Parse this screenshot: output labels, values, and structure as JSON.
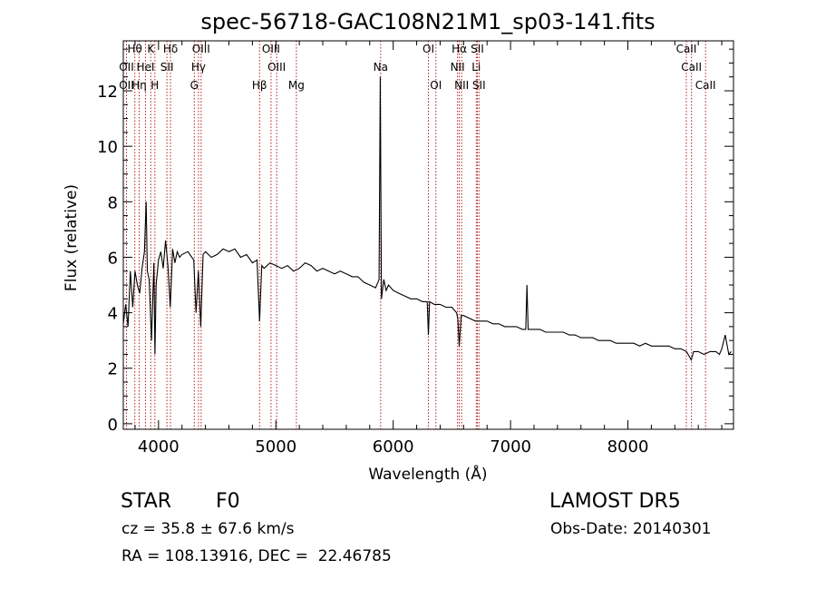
{
  "chart_data": {
    "type": "line",
    "title": "spec-56718-GAC108N21M1_sp03-141.fits",
    "xlabel": "Wavelength (Å)",
    "ylabel": "Flux (relative)",
    "xlim": [
      3700,
      8900
    ],
    "ylim": [
      -0.2,
      13.8
    ],
    "xticks": [
      4000,
      5000,
      6000,
      7000,
      8000
    ],
    "xtick_labels": [
      "4000",
      "5000",
      "6000",
      "7000",
      "8000"
    ],
    "yticks": [
      0,
      2,
      4,
      6,
      8,
      10,
      12
    ],
    "ytick_labels": [
      "0",
      "2",
      "4",
      "6",
      "8",
      "10",
      "12"
    ],
    "grid": false,
    "spectral_lines": [
      {
        "label": "OII",
        "wavelength": 3727,
        "row": 2
      },
      {
        "label": "OII",
        "wavelength": 3727,
        "row": 3
      },
      {
        "label": "Hθ",
        "wavelength": 3798,
        "row": 1
      },
      {
        "label": "Hη",
        "wavelength": 3835,
        "row": 3
      },
      {
        "label": "HeI",
        "wavelength": 3889,
        "row": 2
      },
      {
        "label": "K",
        "wavelength": 3934,
        "row": 1
      },
      {
        "label": "H",
        "wavelength": 3969,
        "row": 3
      },
      {
        "label": "Hδ",
        "wavelength": 4102,
        "row": 1
      },
      {
        "label": "SII",
        "wavelength": 4072,
        "row": 2
      },
      {
        "label": "OIII",
        "wavelength": 4363,
        "row": 1
      },
      {
        "label": "Hγ",
        "wavelength": 4341,
        "row": 2
      },
      {
        "label": "G",
        "wavelength": 4305,
        "row": 3
      },
      {
        "label": "OIII",
        "wavelength": 4959,
        "row": 1
      },
      {
        "label": "OIII",
        "wavelength": 5007,
        "row": 2
      },
      {
        "label": "Hβ",
        "wavelength": 4861,
        "row": 3
      },
      {
        "label": "Mg",
        "wavelength": 5175,
        "row": 3
      },
      {
        "label": "Na",
        "wavelength": 5893,
        "row": 2
      },
      {
        "label": "OI",
        "wavelength": 6300,
        "row": 1
      },
      {
        "label": "OI",
        "wavelength": 6364,
        "row": 3
      },
      {
        "label": "Hα",
        "wavelength": 6563,
        "row": 1
      },
      {
        "label": "NII",
        "wavelength": 6548,
        "row": 2
      },
      {
        "label": "NII",
        "wavelength": 6583,
        "row": 3
      },
      {
        "label": "SII",
        "wavelength": 6717,
        "row": 1
      },
      {
        "label": "Li",
        "wavelength": 6708,
        "row": 2
      },
      {
        "label": "SII",
        "wavelength": 6731,
        "row": 3
      },
      {
        "label": "CaII",
        "wavelength": 8498,
        "row": 1
      },
      {
        "label": "CaII",
        "wavelength": 8542,
        "row": 2
      },
      {
        "label": "CaII",
        "wavelength": 8662,
        "row": 3
      }
    ],
    "series": [
      {
        "x": [
          3700,
          3720,
          3740,
          3760,
          3780,
          3800,
          3820,
          3840,
          3860,
          3880,
          3895,
          3905,
          3920,
          3940,
          3960,
          3970,
          3980,
          4000,
          4020,
          4040,
          4060,
          4080,
          4100,
          4120,
          4140,
          4160,
          4180,
          4200,
          4250,
          4300,
          4320,
          4340,
          4360,
          4380,
          4400,
          4450,
          4500,
          4550,
          4600,
          4650,
          4700,
          4750,
          4800,
          4840,
          4861,
          4880,
          4900,
          4950,
          5000,
          5050,
          5100,
          5150,
          5200,
          5250,
          5300,
          5350,
          5400,
          5450,
          5500,
          5550,
          5600,
          5650,
          5700,
          5750,
          5800,
          5850,
          5880,
          5890,
          5900,
          5920,
          5940,
          5960,
          6000,
          6050,
          6100,
          6150,
          6200,
          6250,
          6290,
          6300,
          6310,
          6350,
          6400,
          6450,
          6500,
          6540,
          6550,
          6563,
          6580,
          6600,
          6650,
          6700,
          6750,
          6800,
          6850,
          6900,
          6950,
          7000,
          7050,
          7100,
          7130,
          7140,
          7150,
          7200,
          7250,
          7300,
          7350,
          7400,
          7450,
          7500,
          7550,
          7600,
          7650,
          7700,
          7750,
          7800,
          7850,
          7900,
          7950,
          8000,
          8050,
          8100,
          8150,
          8200,
          8250,
          8300,
          8350,
          8400,
          8450,
          8500,
          8540,
          8560,
          8600,
          8650,
          8700,
          8750,
          8780,
          8800,
          8830,
          8860,
          8880
        ],
        "y": [
          3.6,
          4.3,
          3.5,
          5.5,
          4.2,
          5.5,
          5.0,
          4.7,
          5.6,
          6.2,
          8.0,
          5.5,
          5.2,
          3.0,
          5.8,
          2.5,
          5.0,
          5.9,
          6.2,
          5.6,
          6.6,
          5.7,
          4.2,
          6.3,
          5.8,
          6.2,
          6.0,
          6.1,
          6.2,
          5.9,
          4.0,
          5.5,
          3.5,
          6.1,
          6.2,
          6.0,
          6.1,
          6.3,
          6.2,
          6.3,
          6.0,
          6.1,
          5.8,
          5.9,
          3.7,
          5.7,
          5.6,
          5.8,
          5.7,
          5.6,
          5.7,
          5.5,
          5.6,
          5.8,
          5.7,
          5.5,
          5.6,
          5.5,
          5.4,
          5.5,
          5.4,
          5.3,
          5.3,
          5.1,
          5.0,
          4.9,
          5.2,
          12.5,
          4.5,
          5.2,
          4.8,
          5.0,
          4.8,
          4.7,
          4.6,
          4.5,
          4.5,
          4.4,
          4.4,
          3.2,
          4.4,
          4.3,
          4.3,
          4.2,
          4.2,
          4.0,
          3.8,
          2.8,
          3.9,
          3.9,
          3.8,
          3.7,
          3.7,
          3.7,
          3.6,
          3.6,
          3.5,
          3.5,
          3.5,
          3.4,
          3.4,
          5.0,
          3.4,
          3.4,
          3.4,
          3.3,
          3.3,
          3.3,
          3.3,
          3.2,
          3.2,
          3.1,
          3.1,
          3.1,
          3.0,
          3.0,
          3.0,
          2.9,
          2.9,
          2.9,
          2.9,
          2.8,
          2.9,
          2.8,
          2.8,
          2.8,
          2.8,
          2.7,
          2.7,
          2.6,
          2.3,
          2.6,
          2.6,
          2.5,
          2.6,
          2.6,
          2.5,
          2.7,
          3.2,
          2.5,
          2.6
        ]
      }
    ]
  },
  "info": {
    "object_class": "STAR",
    "subclass": "F0",
    "redshift_text": "cz = 35.8 ± 67.6 km/s",
    "coords_text": "RA = 108.13916, DEC =  22.46785",
    "survey": "LAMOST DR5",
    "obs_date": "Obs-Date: 20140301"
  },
  "colors": {
    "spectrum": "#000000",
    "line_markers": "#b22222",
    "axes": "#000000",
    "background": "#ffffff"
  }
}
